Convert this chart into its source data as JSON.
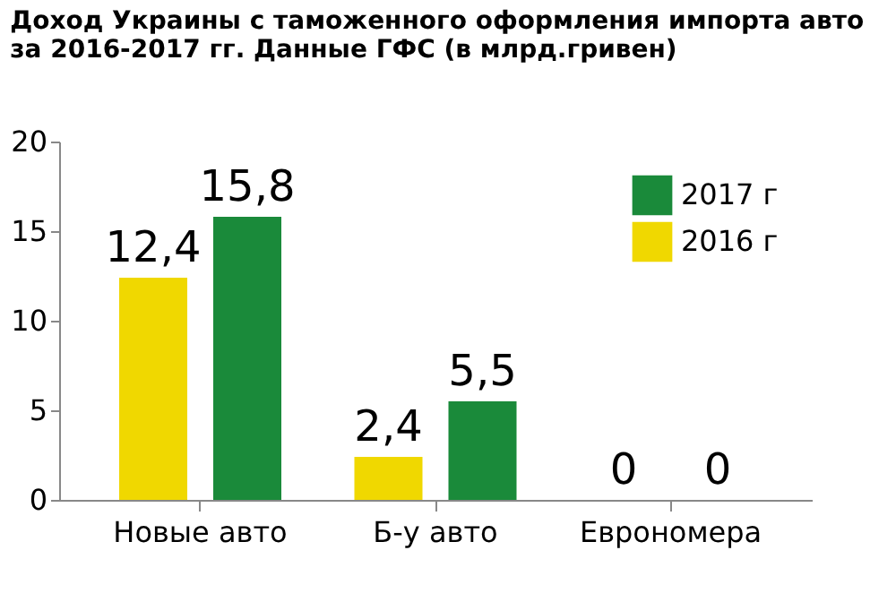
{
  "chart_data": {
    "type": "bar",
    "title": [
      "Доход Украины с таможенного оформления импорта авто",
      "за 2016-2017 гг. Данные ГФС (в млрд.гривен)"
    ],
    "categories": [
      "Новые авто",
      "Б-у авто",
      "Еврономера"
    ],
    "series": [
      {
        "name": "2016 г",
        "color": "#f0d800",
        "values": [
          12.4,
          2.4,
          0
        ]
      },
      {
        "name": "2017 г",
        "color": "#1a8a3a",
        "values": [
          15.8,
          5.5,
          0
        ]
      }
    ],
    "value_labels": [
      [
        "12,4",
        "2,4",
        "0"
      ],
      [
        "15,8",
        "5,5",
        "0"
      ]
    ],
    "ylim": [
      0,
      20
    ],
    "yticks": [
      0,
      5,
      10,
      15,
      20
    ],
    "grid": false,
    "legend": "top right"
  }
}
